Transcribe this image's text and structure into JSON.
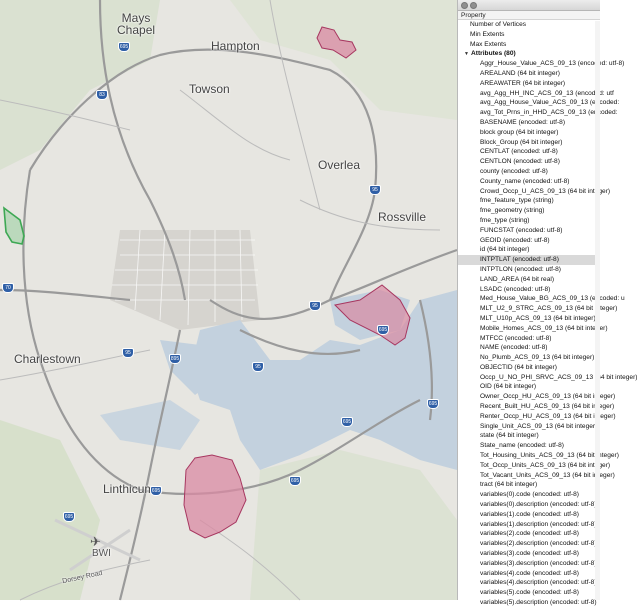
{
  "map": {
    "places": [
      {
        "name": "Mays Chapel",
        "line1": "Mays",
        "line2": "Chapel"
      },
      {
        "name": "Hampton"
      },
      {
        "name": "Towson"
      },
      {
        "name": "Overlea"
      },
      {
        "name": "Rossville"
      },
      {
        "name": "Charlestown"
      },
      {
        "name": "Linthicum"
      },
      {
        "name": "BWI"
      },
      {
        "name": "Dorsey Road"
      }
    ],
    "highway_shields": [
      "695",
      "83",
      "95",
      "70",
      "695",
      "95",
      "95",
      "95",
      "695",
      "695",
      "695",
      "895",
      "695",
      "695"
    ],
    "polygon_colors": {
      "red_fill": "#d98aa3",
      "red_stroke": "#a73760",
      "green_fill": "#9fd0a4",
      "green_stroke": "#3ea854",
      "water": "#c3d1de",
      "park": "#cfdcc1"
    }
  },
  "panel": {
    "column_header": "Property",
    "top_rows": [
      "Number of Vertices",
      "Min Extents",
      "Max Extents"
    ],
    "section_label": "Attributes (80)",
    "section_icon": "disclosure-triangle-expanded",
    "selected_index": 20,
    "attributes": [
      "Aggr_House_Value_ACS_09_13 (encoded: utf-8)",
      "AREALAND (64 bit integer)",
      "AREAWATER (64 bit integer)",
      "avg_Agg_HH_INC_ACS_09_13 (encoded: utf",
      "avg_Agg_House_Value_ACS_09_13 (encoded:",
      "avg_Tot_Prns_in_HHD_ACS_09_13 (encoded:",
      "BASENAME (encoded: utf-8)",
      "block group (64 bit integer)",
      "Block_Group (64 bit integer)",
      "CENTLAT (encoded: utf-8)",
      "CENTLON (encoded: utf-8)",
      "county (encoded: utf-8)",
      "County_name (encoded: utf-8)",
      "Crowd_Occp_U_ACS_09_13 (64 bit integer)",
      "fme_feature_type (string)",
      "fme_geometry (string)",
      "fme_type (string)",
      "FUNCSTAT (encoded: utf-8)",
      "GEOID (encoded: utf-8)",
      "id (64 bit integer)",
      "INTPTLAT (encoded: utf-8)",
      "INTPTLON (encoded: utf-8)",
      "LAND_AREA (64 bit real)",
      "LSADC (encoded: utf-8)",
      "Med_House_Value_BG_ACS_09_13 (encoded: u",
      "MLT_U2_9_STRC_ACS_09_13 (64 bit integer)",
      "MLT_U10p_ACS_09_13 (64 bit integer)",
      "Mobile_Homes_ACS_09_13 (64 bit integer)",
      "MTFCC (encoded: utf-8)",
      "NAME (encoded: utf-8)",
      "No_Plumb_ACS_09_13 (64 bit integer)",
      "OBJECTID (64 bit integer)",
      "Occp_U_NO_PHI_SRVC_ACS_09_13 (64 bit integer)",
      "OID (64 bit integer)",
      "Owner_Occp_HU_ACS_09_13 (64 bit integer)",
      "Recent_Built_HU_ACS_09_13 (64 bit integer)",
      "Renter_Occp_HU_ACS_09_13 (64 bit integer)",
      "Single_Unit_ACS_09_13 (64 bit integer)",
      "state (64 bit integer)",
      "State_name (encoded: utf-8)",
      "Tot_Housing_Units_ACS_09_13 (64 bit integer)",
      "Tot_Occp_Units_ACS_09_13 (64 bit integer)",
      "Tot_Vacant_Units_ACS_09_13 (64 bit integer)",
      "tract (64 bit integer)",
      "variables(0).code (encoded: utf-8)",
      "variables(0).description (encoded: utf-8)",
      "variables(1).code (encoded: utf-8)",
      "variables(1).description (encoded: utf-8)",
      "variables(2).code (encoded: utf-8)",
      "variables(2).description (encoded: utf-8)",
      "variables(3).code (encoded: utf-8)",
      "variables(3).description (encoded: utf-8)",
      "variables(4).code (encoded: utf-8)",
      "variables(4).description (encoded: utf-8)",
      "variables(5).code (encoded: utf-8)",
      "variables(5).description (encoded: utf-8)"
    ]
  }
}
